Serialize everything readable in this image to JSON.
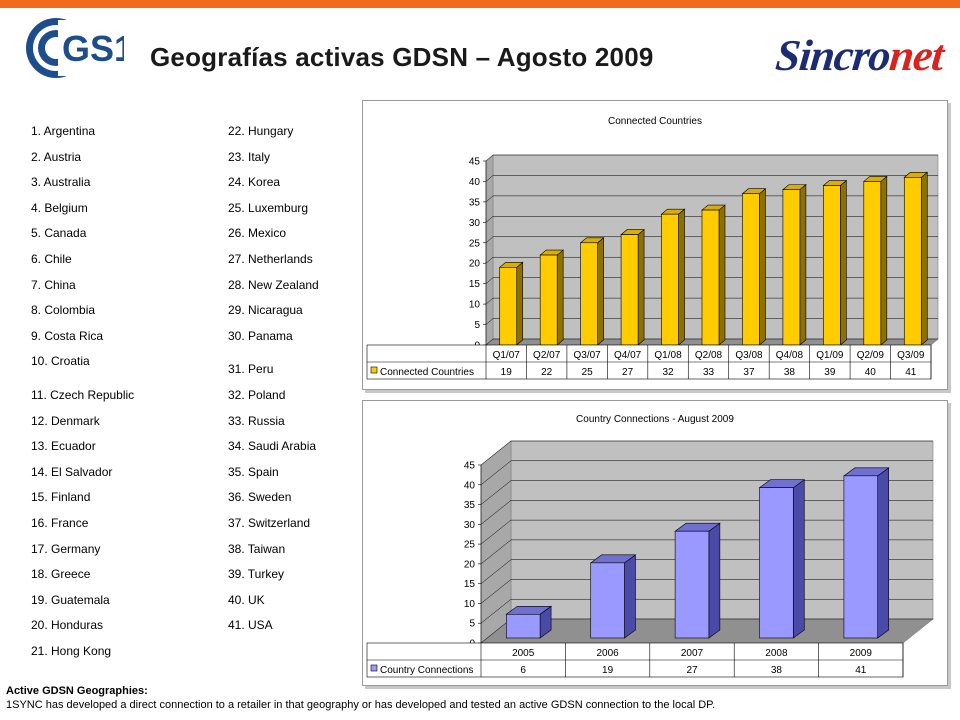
{
  "header": {
    "title": "Geografías activas GDSN – Agosto 2009",
    "logo_left": "GS1",
    "logo_right_a": "Sincro",
    "logo_right_b": "net"
  },
  "countries_left": [
    "1. Argentina",
    "2. Austria",
    "3. Australia",
    "4. Belgium",
    "5. Canada",
    "6. Chile",
    "7. China",
    "8. Colombia",
    "9. Costa Rica",
    "10. Croatia",
    "11. Czech Republic",
    "12. Denmark",
    "13. Ecuador",
    "14. El Salvador",
    "15. Finland",
    "16. France",
    "17. Germany",
    "18. Greece",
    "19. Guatemala",
    "20. Honduras",
    "21. Hong Kong"
  ],
  "countries_right": [
    "22. Hungary",
    "23. Italy",
    "24. Korea",
    "25. Luxemburg",
    "26. Mexico",
    "27. Netherlands",
    "28. New Zealand",
    "29. Nicaragua",
    "30. Panama",
    "31. Peru",
    "32. Poland",
    "33. Russia",
    "34. Saudi Arabia",
    "35. Spain",
    "36. Sweden",
    "37. Switzerland",
    "38. Taiwan",
    "39. Turkey",
    "40. UK",
    "41. USA"
  ],
  "footer": {
    "title": "Active GDSN Geographies:",
    "note": "1SYNC has developed a direct connection to a retailer in that geography or has developed and tested an active GDSN connection to the local DP."
  },
  "chart_data": [
    {
      "type": "bar",
      "title": "Connected Countries",
      "categories": [
        "Q1/07",
        "Q2/07",
        "Q3/07",
        "Q4/07",
        "Q1/08",
        "Q2/08",
        "Q3/08",
        "Q4/08",
        "Q1/09",
        "Q2/09",
        "Q3/09"
      ],
      "series": [
        {
          "name": "Connected Countries",
          "values": [
            19,
            22,
            25,
            27,
            32,
            33,
            37,
            38,
            39,
            40,
            41
          ]
        }
      ],
      "ylim": [
        0,
        45
      ],
      "yticks": [
        0,
        5,
        10,
        15,
        20,
        25,
        30,
        35,
        40,
        45
      ],
      "grid": true,
      "legend": "data-table",
      "color": "#ffcc00",
      "color_side": "#8c7000",
      "color_top": "#d9ae00"
    },
    {
      "type": "bar",
      "title": "Country Connections - August 2009",
      "categories": [
        "2005",
        "2006",
        "2007",
        "2008",
        "2009"
      ],
      "series": [
        {
          "name": "Country Connections",
          "values": [
            6,
            19,
            27,
            38,
            41
          ]
        }
      ],
      "ylim": [
        0,
        45
      ],
      "yticks": [
        0,
        5,
        10,
        15,
        20,
        25,
        30,
        35,
        40,
        45
      ],
      "grid": true,
      "legend": "data-table",
      "color": "#9999ff",
      "color_side": "#4a4aa8",
      "color_top": "#7070d0"
    }
  ]
}
